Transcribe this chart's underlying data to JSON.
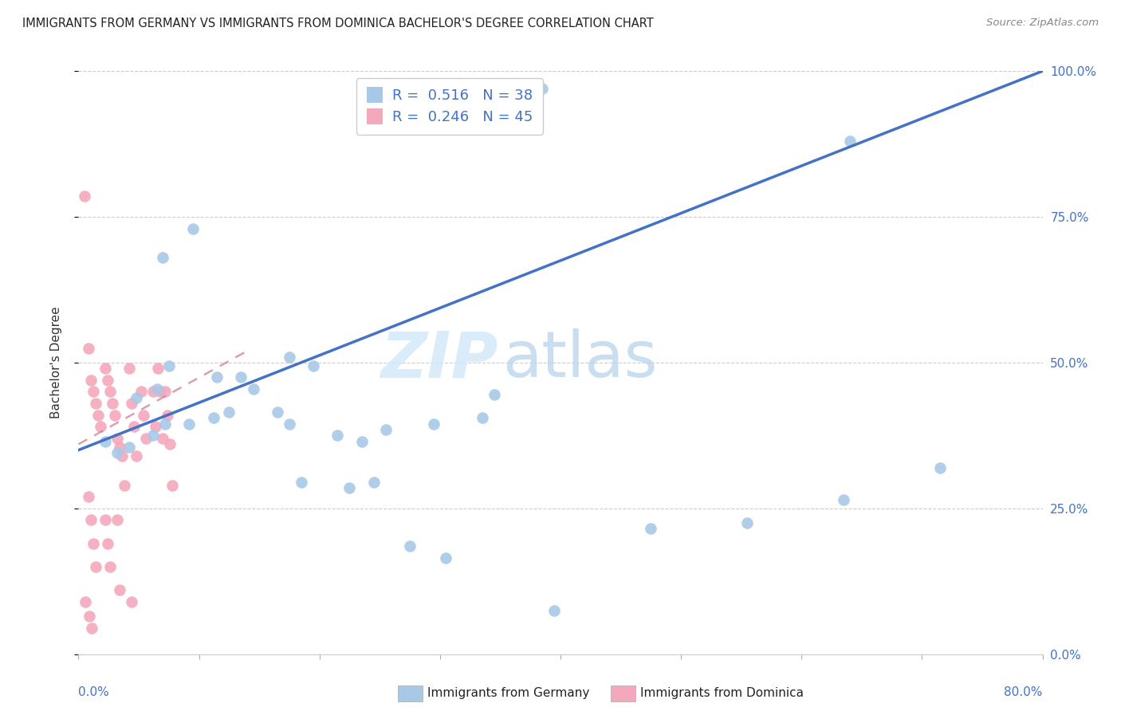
{
  "title": "IMMIGRANTS FROM GERMANY VS IMMIGRANTS FROM DOMINICA BACHELOR'S DEGREE CORRELATION CHART",
  "source": "Source: ZipAtlas.com",
  "ylabel": "Bachelor's Degree",
  "xlim": [
    0.0,
    0.8
  ],
  "ylim": [
    0.0,
    1.0
  ],
  "ytick_vals": [
    0.0,
    0.25,
    0.5,
    0.75,
    1.0
  ],
  "ytick_labels": [
    "0.0%",
    "25.0%",
    "50.0%",
    "75.0%",
    "100.0%"
  ],
  "xtick_vals": [
    0.0,
    0.1,
    0.2,
    0.3,
    0.4,
    0.5,
    0.6,
    0.7,
    0.8
  ],
  "germany_R": 0.516,
  "germany_N": 38,
  "dominica_R": 0.246,
  "dominica_N": 45,
  "germany_color": "#a8c8e8",
  "dominica_color": "#f4a8bc",
  "germany_line_color": "#4472c4",
  "dominica_line_color": "#d08090",
  "legend_label_germany": "Immigrants from Germany",
  "legend_label_dominica": "Immigrants from Dominica",
  "watermark_zip": "ZIP",
  "watermark_atlas": "atlas",
  "germany_line_x0": 0.0,
  "germany_line_y0": 0.35,
  "germany_line_x1": 0.8,
  "germany_line_y1": 1.0,
  "dominica_line_x0": 0.0,
  "dominica_line_y0": 0.36,
  "dominica_line_x1": 0.14,
  "dominica_line_y1": 0.52,
  "germany_x": [
    0.385,
    0.64,
    0.07,
    0.095,
    0.075,
    0.115,
    0.065,
    0.048,
    0.135,
    0.175,
    0.145,
    0.165,
    0.195,
    0.215,
    0.175,
    0.235,
    0.255,
    0.225,
    0.295,
    0.335,
    0.475,
    0.555,
    0.635,
    0.715,
    0.022,
    0.032,
    0.042,
    0.062,
    0.072,
    0.092,
    0.112,
    0.125,
    0.185,
    0.245,
    0.275,
    0.305,
    0.395,
    0.345
  ],
  "germany_y": [
    0.97,
    0.88,
    0.68,
    0.73,
    0.495,
    0.475,
    0.455,
    0.44,
    0.475,
    0.51,
    0.455,
    0.415,
    0.495,
    0.375,
    0.395,
    0.365,
    0.385,
    0.285,
    0.395,
    0.405,
    0.215,
    0.225,
    0.265,
    0.32,
    0.365,
    0.345,
    0.355,
    0.375,
    0.395,
    0.395,
    0.405,
    0.415,
    0.295,
    0.295,
    0.185,
    0.165,
    0.075,
    0.445
  ],
  "dominica_x": [
    0.005,
    0.008,
    0.01,
    0.012,
    0.014,
    0.016,
    0.018,
    0.022,
    0.024,
    0.026,
    0.028,
    0.03,
    0.032,
    0.034,
    0.036,
    0.038,
    0.042,
    0.044,
    0.046,
    0.048,
    0.052,
    0.054,
    0.056,
    0.062,
    0.064,
    0.066,
    0.068,
    0.07,
    0.072,
    0.074,
    0.076,
    0.078,
    0.008,
    0.01,
    0.012,
    0.014,
    0.022,
    0.024,
    0.026,
    0.032,
    0.034,
    0.044,
    0.006,
    0.009,
    0.011
  ],
  "dominica_y": [
    0.785,
    0.525,
    0.47,
    0.45,
    0.43,
    0.41,
    0.39,
    0.49,
    0.47,
    0.45,
    0.43,
    0.41,
    0.37,
    0.355,
    0.34,
    0.29,
    0.49,
    0.43,
    0.39,
    0.34,
    0.45,
    0.41,
    0.37,
    0.45,
    0.39,
    0.49,
    0.45,
    0.37,
    0.45,
    0.41,
    0.36,
    0.29,
    0.27,
    0.23,
    0.19,
    0.15,
    0.23,
    0.19,
    0.15,
    0.23,
    0.11,
    0.09,
    0.09,
    0.065,
    0.045
  ]
}
